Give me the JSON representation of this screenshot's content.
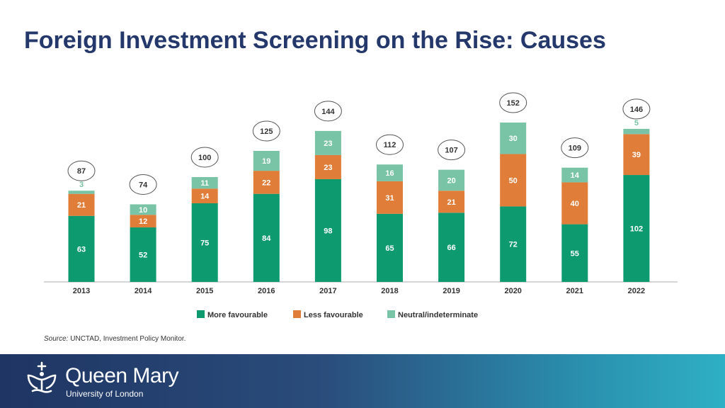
{
  "slide": {
    "title": "Foreign Investment Screening on the Rise: Causes",
    "source_label": "Source:",
    "source_text": "UNCTAD, Investment Policy Monitor."
  },
  "branding": {
    "name": "Queen Mary",
    "subtitle": "University of London"
  },
  "colors": {
    "title": "#24386b",
    "more_favourable": "#0e9a6f",
    "less_favourable": "#e07d39",
    "neutral": "#79c3a6"
  },
  "chart_data": {
    "type": "bar",
    "stacked": true,
    "categories": [
      "2013",
      "2014",
      "2015",
      "2016",
      "2017",
      "2018",
      "2019",
      "2020",
      "2021",
      "2022"
    ],
    "series": [
      {
        "name": "More favourable",
        "color": "#0e9a6f",
        "values": [
          63,
          52,
          75,
          84,
          98,
          65,
          66,
          72,
          55,
          102
        ]
      },
      {
        "name": "Less favourable",
        "color": "#e07d39",
        "values": [
          21,
          12,
          14,
          22,
          23,
          31,
          21,
          50,
          40,
          39
        ]
      },
      {
        "name": "Neutral/indeterminate",
        "color": "#79c3a6",
        "values": [
          3,
          10,
          11,
          19,
          23,
          16,
          20,
          30,
          14,
          5
        ]
      }
    ],
    "totals": [
      87,
      74,
      100,
      125,
      144,
      112,
      107,
      152,
      109,
      146
    ],
    "title": "",
    "xlabel": "",
    "ylabel": "",
    "ylim": [
      0,
      160
    ],
    "legend": "bottom"
  }
}
